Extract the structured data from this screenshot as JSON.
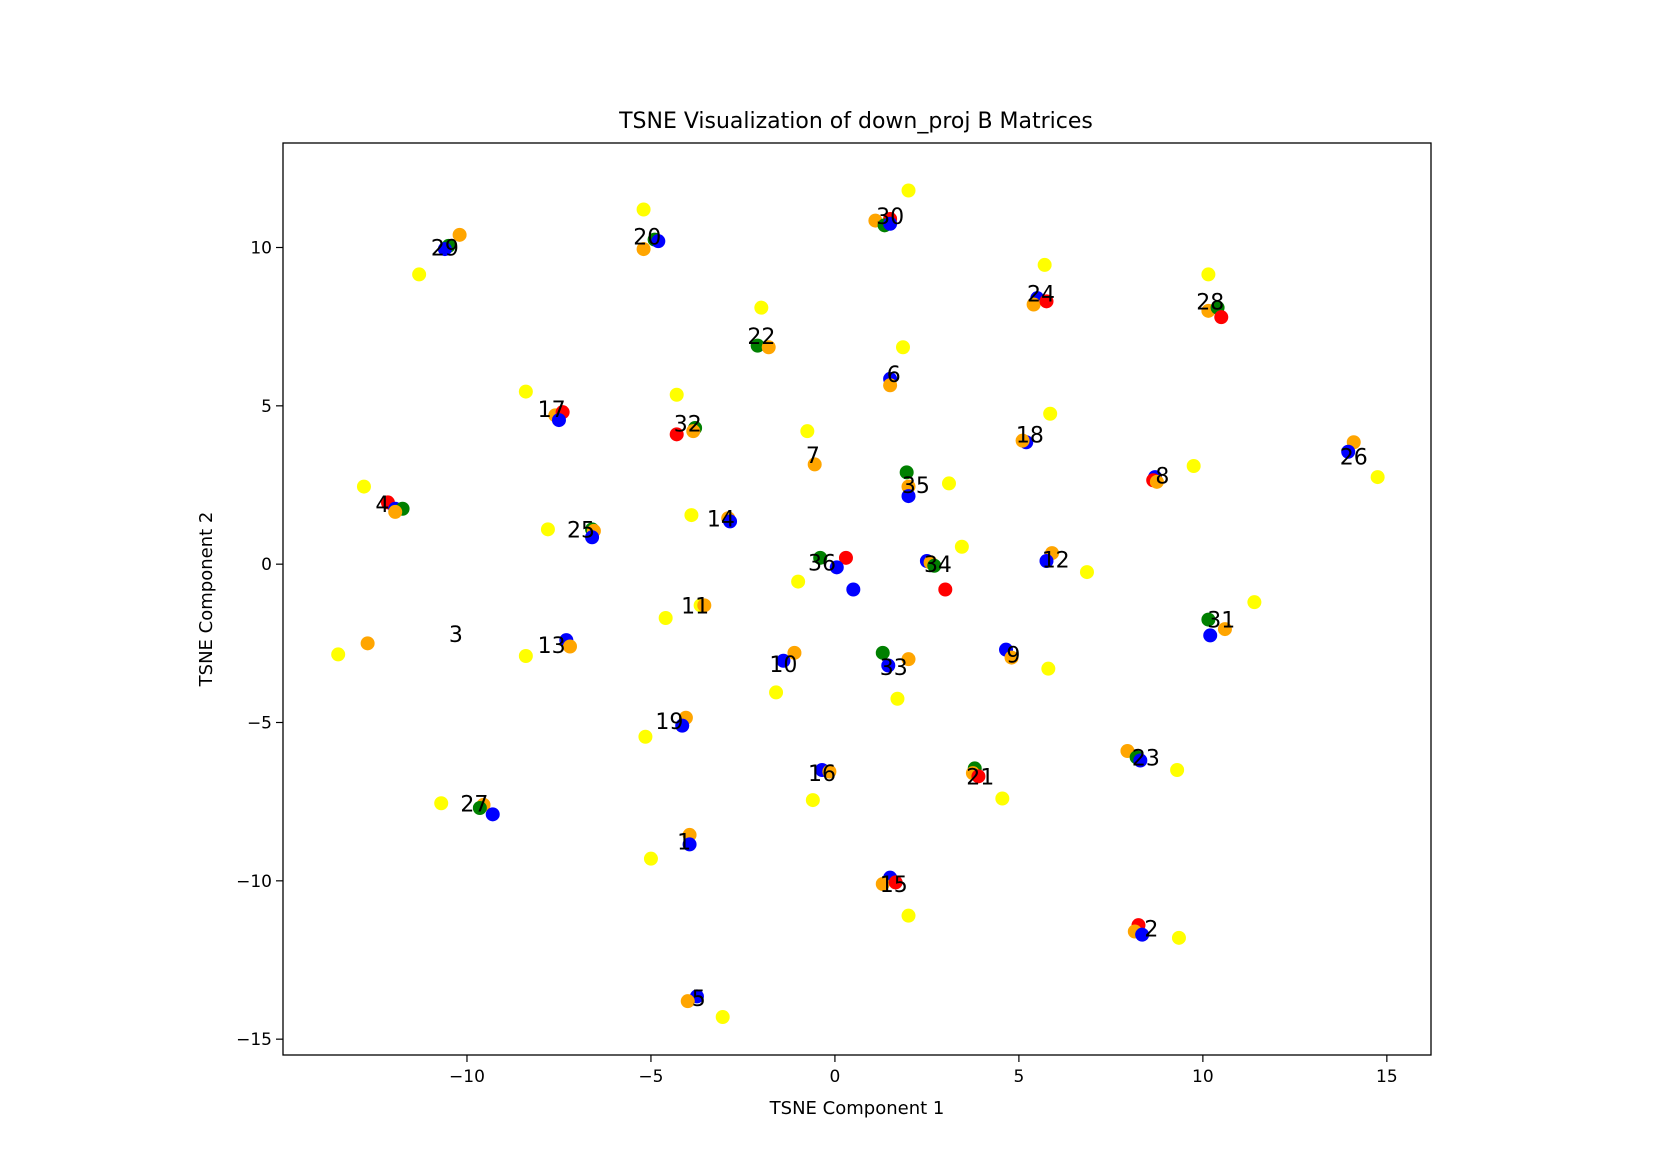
{
  "chart_data": {
    "type": "scatter",
    "title": "TSNE Visualization of down_proj B Matrices",
    "xlabel": "TSNE Component 1",
    "ylabel": "TSNE Component 2",
    "xlim": [
      -15,
      16.2
    ],
    "ylim": [
      -15.5,
      13.3
    ],
    "xticks": [
      -10,
      -5,
      0,
      5,
      10,
      15
    ],
    "yticks": [
      -15,
      -10,
      -5,
      0,
      5,
      10
    ],
    "xtick_labels": [
      "−10",
      "−5",
      "0",
      "5",
      "10",
      "15"
    ],
    "ytick_labels": [
      "−15",
      "−10",
      "−5",
      "0",
      "5",
      "10"
    ],
    "grid": false,
    "colors": {
      "red": "#ff0000",
      "green": "#008000",
      "blue": "#0000ff",
      "orange": "#ffa500",
      "yellow": "#ffff00"
    },
    "groups": [
      {
        "label": "29",
        "label_x": -10.6,
        "label_y": 10.0,
        "points": [
          {
            "x": -10.2,
            "y": 10.4,
            "c": "orange"
          },
          {
            "x": -10.5,
            "y": 10.05,
            "c": "green"
          },
          {
            "x": -10.6,
            "y": 9.95,
            "c": "blue"
          },
          {
            "x": -11.3,
            "y": 9.15,
            "c": "yellow"
          }
        ]
      },
      {
        "label": "20",
        "label_x": -5.1,
        "label_y": 10.35,
        "points": [
          {
            "x": -5.2,
            "y": 11.2,
            "c": "yellow"
          },
          {
            "x": -5.2,
            "y": 9.95,
            "c": "orange"
          },
          {
            "x": -4.9,
            "y": 10.25,
            "c": "green"
          },
          {
            "x": -4.8,
            "y": 10.2,
            "c": "blue"
          }
        ]
      },
      {
        "label": "30",
        "label_x": 1.5,
        "label_y": 11.0,
        "points": [
          {
            "x": 2.0,
            "y": 11.8,
            "c": "yellow"
          },
          {
            "x": 1.1,
            "y": 10.85,
            "c": "orange"
          },
          {
            "x": 1.5,
            "y": 10.9,
            "c": "red"
          },
          {
            "x": 1.35,
            "y": 10.7,
            "c": "green"
          },
          {
            "x": 1.5,
            "y": 10.75,
            "c": "blue"
          }
        ]
      },
      {
        "label": "24",
        "label_x": 5.6,
        "label_y": 8.55,
        "points": [
          {
            "x": 5.7,
            "y": 9.45,
            "c": "yellow"
          },
          {
            "x": 5.5,
            "y": 8.4,
            "c": "blue"
          },
          {
            "x": 5.4,
            "y": 8.2,
            "c": "orange"
          },
          {
            "x": 5.75,
            "y": 8.3,
            "c": "red"
          }
        ]
      },
      {
        "label": "28",
        "label_x": 10.2,
        "label_y": 8.3,
        "points": [
          {
            "x": 10.15,
            "y": 9.15,
            "c": "yellow"
          },
          {
            "x": 10.15,
            "y": 8.0,
            "c": "orange"
          },
          {
            "x": 10.4,
            "y": 8.1,
            "c": "green"
          },
          {
            "x": 10.5,
            "y": 7.8,
            "c": "red"
          }
        ]
      },
      {
        "label": "22",
        "label_x": -2.0,
        "label_y": 7.2,
        "points": [
          {
            "x": -2.0,
            "y": 8.1,
            "c": "yellow"
          },
          {
            "x": -2.1,
            "y": 6.9,
            "c": "green"
          },
          {
            "x": -1.8,
            "y": 6.85,
            "c": "orange"
          }
        ]
      },
      {
        "label": "6",
        "label_x": 1.6,
        "label_y": 6.0,
        "points": [
          {
            "x": 1.85,
            "y": 6.85,
            "c": "yellow"
          },
          {
            "x": 1.5,
            "y": 5.85,
            "c": "blue"
          },
          {
            "x": 1.5,
            "y": 5.65,
            "c": "orange"
          }
        ]
      },
      {
        "label": "17",
        "label_x": -7.7,
        "label_y": 4.9,
        "points": [
          {
            "x": -8.4,
            "y": 5.45,
            "c": "yellow"
          },
          {
            "x": -7.6,
            "y": 4.7,
            "c": "orange"
          },
          {
            "x": -7.4,
            "y": 4.8,
            "c": "red"
          },
          {
            "x": -7.5,
            "y": 4.55,
            "c": "blue"
          }
        ]
      },
      {
        "label": "32",
        "label_x": -4.0,
        "label_y": 4.45,
        "points": [
          {
            "x": -4.3,
            "y": 5.35,
            "c": "yellow"
          },
          {
            "x": -4.3,
            "y": 4.1,
            "c": "red"
          },
          {
            "x": -3.8,
            "y": 4.3,
            "c": "green"
          },
          {
            "x": -3.85,
            "y": 4.2,
            "c": "orange"
          }
        ]
      },
      {
        "label": "7",
        "label_x": -0.6,
        "label_y": 3.45,
        "points": [
          {
            "x": -0.75,
            "y": 4.2,
            "c": "yellow"
          },
          {
            "x": -0.55,
            "y": 3.15,
            "c": "orange"
          }
        ]
      },
      {
        "label": "18",
        "label_x": 5.3,
        "label_y": 4.1,
        "points": [
          {
            "x": 5.85,
            "y": 4.75,
            "c": "yellow"
          },
          {
            "x": 5.2,
            "y": 3.85,
            "c": "blue"
          },
          {
            "x": 5.1,
            "y": 3.9,
            "c": "orange"
          }
        ]
      },
      {
        "label": "26",
        "label_x": 14.1,
        "label_y": 3.4,
        "points": [
          {
            "x": 14.1,
            "y": 3.85,
            "c": "orange"
          },
          {
            "x": 13.95,
            "y": 3.55,
            "c": "blue"
          },
          {
            "x": 14.75,
            "y": 2.75,
            "c": "yellow"
          }
        ]
      },
      {
        "label": "8",
        "label_x": 8.9,
        "label_y": 2.8,
        "points": [
          {
            "x": 9.75,
            "y": 3.1,
            "c": "yellow"
          },
          {
            "x": 8.7,
            "y": 2.75,
            "c": "blue"
          },
          {
            "x": 8.65,
            "y": 2.65,
            "c": "red"
          },
          {
            "x": 8.75,
            "y": 2.6,
            "c": "orange"
          }
        ]
      },
      {
        "label": "35",
        "label_x": 2.2,
        "label_y": 2.5,
        "points": [
          {
            "x": 1.95,
            "y": 2.9,
            "c": "green"
          },
          {
            "x": 2.0,
            "y": 2.45,
            "c": "orange"
          },
          {
            "x": 2.0,
            "y": 2.15,
            "c": "blue"
          },
          {
            "x": 3.1,
            "y": 2.55,
            "c": "yellow"
          }
        ]
      },
      {
        "label": "4",
        "label_x": -12.3,
        "label_y": 1.9,
        "points": [
          {
            "x": -12.8,
            "y": 2.45,
            "c": "yellow"
          },
          {
            "x": -12.15,
            "y": 1.95,
            "c": "red"
          },
          {
            "x": -11.95,
            "y": 1.75,
            "c": "blue"
          },
          {
            "x": -11.75,
            "y": 1.75,
            "c": "green"
          },
          {
            "x": -11.95,
            "y": 1.65,
            "c": "orange"
          }
        ]
      },
      {
        "label": "14",
        "label_x": -3.1,
        "label_y": 1.45,
        "points": [
          {
            "x": -3.9,
            "y": 1.55,
            "c": "yellow"
          },
          {
            "x": -2.9,
            "y": 1.45,
            "c": "orange"
          },
          {
            "x": -2.85,
            "y": 1.35,
            "c": "blue"
          }
        ]
      },
      {
        "label": "25",
        "label_x": -6.9,
        "label_y": 1.1,
        "points": [
          {
            "x": -7.8,
            "y": 1.1,
            "c": "yellow"
          },
          {
            "x": -6.6,
            "y": 1.1,
            "c": "green"
          },
          {
            "x": -6.55,
            "y": 1.05,
            "c": "orange"
          },
          {
            "x": -6.6,
            "y": 0.85,
            "c": "blue"
          }
        ]
      },
      {
        "label": "36",
        "label_x": -0.35,
        "label_y": 0.05,
        "points": [
          {
            "x": -0.4,
            "y": 0.2,
            "c": "green"
          },
          {
            "x": 0.3,
            "y": 0.2,
            "c": "red"
          },
          {
            "x": 0.05,
            "y": -0.1,
            "c": "blue"
          },
          {
            "x": 0.5,
            "y": -0.8,
            "c": "blue"
          },
          {
            "x": -1.0,
            "y": -0.55,
            "c": "yellow"
          }
        ]
      },
      {
        "label": "34",
        "label_x": 2.8,
        "label_y": 0.0,
        "points": [
          {
            "x": 2.5,
            "y": 0.1,
            "c": "blue"
          },
          {
            "x": 2.6,
            "y": 0.05,
            "c": "orange"
          },
          {
            "x": 2.7,
            "y": -0.05,
            "c": "green"
          },
          {
            "x": 3.45,
            "y": 0.55,
            "c": "yellow"
          },
          {
            "x": 3.0,
            "y": -0.8,
            "c": "red"
          }
        ]
      },
      {
        "label": "12",
        "label_x": 6.0,
        "label_y": 0.15,
        "points": [
          {
            "x": 5.9,
            "y": 0.35,
            "c": "orange"
          },
          {
            "x": 5.75,
            "y": 0.1,
            "c": "blue"
          },
          {
            "x": 6.85,
            "y": -0.25,
            "c": "yellow"
          }
        ]
      },
      {
        "label": "11",
        "label_x": -3.8,
        "label_y": -1.3,
        "points": [
          {
            "x": -3.65,
            "y": -1.3,
            "c": "yellow"
          },
          {
            "x": -3.55,
            "y": -1.3,
            "c": "orange"
          },
          {
            "x": -4.6,
            "y": -1.7,
            "c": "yellow"
          }
        ]
      },
      {
        "label": "31",
        "label_x": 10.5,
        "label_y": -1.75,
        "points": [
          {
            "x": 10.15,
            "y": -1.75,
            "c": "green"
          },
          {
            "x": 10.6,
            "y": -2.05,
            "c": "orange"
          },
          {
            "x": 10.2,
            "y": -2.25,
            "c": "blue"
          },
          {
            "x": 11.4,
            "y": -1.2,
            "c": "yellow"
          }
        ]
      },
      {
        "label": "3",
        "label_x": -10.3,
        "label_y": -2.2,
        "points": [
          {
            "x": -12.7,
            "y": -2.5,
            "c": "orange"
          },
          {
            "x": -13.5,
            "y": -2.85,
            "c": "yellow"
          }
        ]
      },
      {
        "label": "13",
        "label_x": -7.7,
        "label_y": -2.55,
        "points": [
          {
            "x": -7.3,
            "y": -2.4,
            "c": "blue"
          },
          {
            "x": -7.2,
            "y": -2.6,
            "c": "orange"
          },
          {
            "x": -8.4,
            "y": -2.9,
            "c": "yellow"
          }
        ]
      },
      {
        "label": "10",
        "label_x": -1.4,
        "label_y": -3.15,
        "points": [
          {
            "x": -1.1,
            "y": -2.8,
            "c": "orange"
          },
          {
            "x": -1.4,
            "y": -3.05,
            "c": "blue"
          },
          {
            "x": -1.6,
            "y": -4.05,
            "c": "yellow"
          }
        ]
      },
      {
        "label": "33",
        "label_x": 1.6,
        "label_y": -3.25,
        "points": [
          {
            "x": 1.3,
            "y": -2.8,
            "c": "green"
          },
          {
            "x": 2.0,
            "y": -3.0,
            "c": "orange"
          },
          {
            "x": 1.45,
            "y": -3.2,
            "c": "blue"
          },
          {
            "x": 1.7,
            "y": -4.25,
            "c": "yellow"
          }
        ]
      },
      {
        "label": "9",
        "label_x": 4.85,
        "label_y": -2.85,
        "points": [
          {
            "x": 4.65,
            "y": -2.7,
            "c": "blue"
          },
          {
            "x": 4.8,
            "y": -2.95,
            "c": "orange"
          },
          {
            "x": 5.8,
            "y": -3.3,
            "c": "yellow"
          }
        ]
      },
      {
        "label": "19",
        "label_x": -4.5,
        "label_y": -4.95,
        "points": [
          {
            "x": -4.05,
            "y": -4.85,
            "c": "orange"
          },
          {
            "x": -4.15,
            "y": -5.1,
            "c": "blue"
          },
          {
            "x": -5.15,
            "y": -5.45,
            "c": "yellow"
          }
        ]
      },
      {
        "label": "23",
        "label_x": 8.45,
        "label_y": -6.1,
        "points": [
          {
            "x": 7.95,
            "y": -5.9,
            "c": "orange"
          },
          {
            "x": 8.2,
            "y": -6.1,
            "c": "green"
          },
          {
            "x": 8.3,
            "y": -6.2,
            "c": "blue"
          },
          {
            "x": 9.3,
            "y": -6.5,
            "c": "yellow"
          }
        ]
      },
      {
        "label": "16",
        "label_x": -0.35,
        "label_y": -6.6,
        "points": [
          {
            "x": -0.35,
            "y": -6.5,
            "c": "blue"
          },
          {
            "x": -0.15,
            "y": -6.55,
            "c": "orange"
          },
          {
            "x": -0.6,
            "y": -7.45,
            "c": "yellow"
          }
        ]
      },
      {
        "label": "21",
        "label_x": 3.95,
        "label_y": -6.7,
        "points": [
          {
            "x": 3.8,
            "y": -6.45,
            "c": "green"
          },
          {
            "x": 3.75,
            "y": -6.6,
            "c": "orange"
          },
          {
            "x": 3.9,
            "y": -6.7,
            "c": "red"
          },
          {
            "x": 4.55,
            "y": -7.4,
            "c": "yellow"
          }
        ]
      },
      {
        "label": "27",
        "label_x": -9.8,
        "label_y": -7.55,
        "points": [
          {
            "x": -10.7,
            "y": -7.55,
            "c": "yellow"
          },
          {
            "x": -9.55,
            "y": -7.6,
            "c": "orange"
          },
          {
            "x": -9.65,
            "y": -7.7,
            "c": "green"
          },
          {
            "x": -9.3,
            "y": -7.9,
            "c": "blue"
          }
        ]
      },
      {
        "label": "1",
        "label_x": -4.1,
        "label_y": -8.75,
        "points": [
          {
            "x": -3.95,
            "y": -8.55,
            "c": "orange"
          },
          {
            "x": -3.95,
            "y": -8.85,
            "c": "blue"
          },
          {
            "x": -5.0,
            "y": -9.3,
            "c": "yellow"
          }
        ]
      },
      {
        "label": "15",
        "label_x": 1.6,
        "label_y": -10.1,
        "points": [
          {
            "x": 1.5,
            "y": -9.9,
            "c": "blue"
          },
          {
            "x": 1.3,
            "y": -10.1,
            "c": "orange"
          },
          {
            "x": 1.65,
            "y": -10.05,
            "c": "red"
          },
          {
            "x": 2.0,
            "y": -11.1,
            "c": "yellow"
          }
        ]
      },
      {
        "label": "2",
        "label_x": 8.6,
        "label_y": -11.5,
        "points": [
          {
            "x": 8.25,
            "y": -11.4,
            "c": "red"
          },
          {
            "x": 8.15,
            "y": -11.6,
            "c": "orange"
          },
          {
            "x": 8.35,
            "y": -11.7,
            "c": "blue"
          },
          {
            "x": 9.35,
            "y": -11.8,
            "c": "yellow"
          }
        ]
      },
      {
        "label": "5",
        "label_x": -3.7,
        "label_y": -13.7,
        "points": [
          {
            "x": -3.75,
            "y": -13.65,
            "c": "blue"
          },
          {
            "x": -4.0,
            "y": -13.8,
            "c": "orange"
          },
          {
            "x": -3.05,
            "y": -14.3,
            "c": "yellow"
          }
        ]
      }
    ]
  }
}
